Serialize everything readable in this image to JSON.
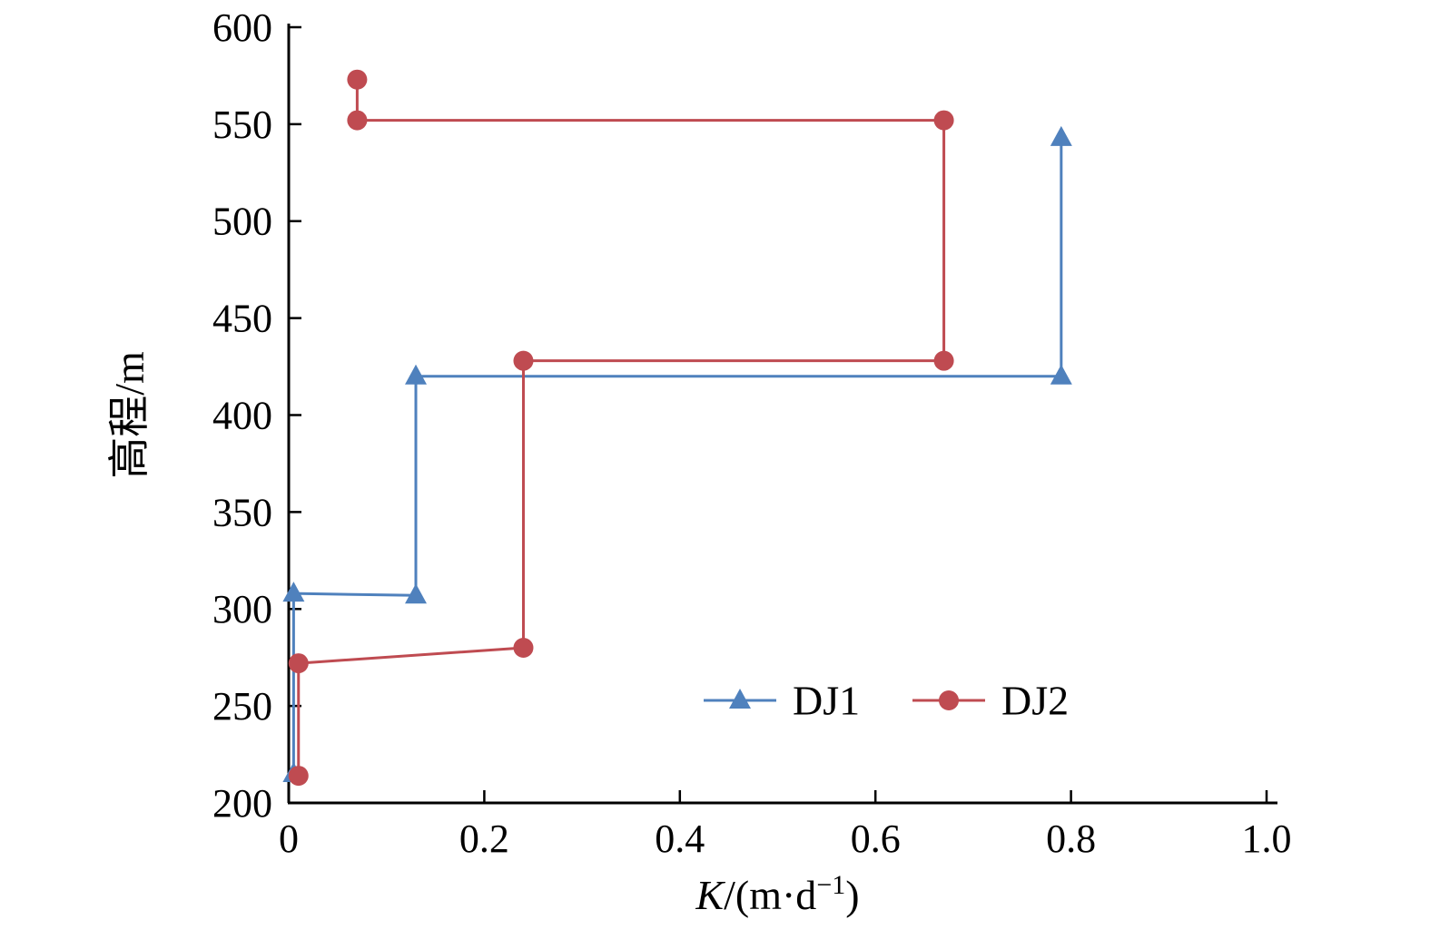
{
  "chart_data": {
    "type": "line",
    "title": "",
    "ylabel": "高程/m",
    "xlabel_parts": [
      {
        "text": "K",
        "italic": true
      },
      {
        "text": "/(m·d"
      },
      {
        "text": "−1",
        "sup": true
      },
      {
        "text": ")"
      }
    ],
    "xlim": [
      0,
      1.0
    ],
    "ylim": [
      200,
      600
    ],
    "grid": false,
    "xticks": [
      {
        "v": 0,
        "label": "0"
      },
      {
        "v": 0.2,
        "label": "0.2"
      },
      {
        "v": 0.4,
        "label": "0.4"
      },
      {
        "v": 0.6,
        "label": "0.6"
      },
      {
        "v": 0.8,
        "label": "0.8"
      },
      {
        "v": 1.0,
        "label": "1.0"
      }
    ],
    "yticks": [
      {
        "v": 200,
        "label": "200"
      },
      {
        "v": 250,
        "label": "250"
      },
      {
        "v": 300,
        "label": "300"
      },
      {
        "v": 350,
        "label": "350"
      },
      {
        "v": 400,
        "label": "400"
      },
      {
        "v": 450,
        "label": "450"
      },
      {
        "v": 500,
        "label": "500"
      },
      {
        "v": 550,
        "label": "550"
      },
      {
        "v": 600,
        "label": "600"
      }
    ],
    "legend": {
      "position": "inside-lower-middle",
      "items": [
        {
          "label": "DJ1",
          "series": 0
        },
        {
          "label": "DJ2",
          "series": 1
        }
      ]
    },
    "series": [
      {
        "name": "DJ1",
        "color": "#4f81bd",
        "marker": "triangle",
        "points": [
          {
            "x": 0.79,
            "y": 543
          },
          {
            "x": 0.79,
            "y": 420
          },
          {
            "x": 0.13,
            "y": 420
          },
          {
            "x": 0.13,
            "y": 307
          },
          {
            "x": 0.005,
            "y": 308
          },
          {
            "x": 0.005,
            "y": 215
          }
        ]
      },
      {
        "name": "DJ2",
        "color": "#bf4b51",
        "marker": "circle",
        "points": [
          {
            "x": 0.07,
            "y": 573
          },
          {
            "x": 0.07,
            "y": 552
          },
          {
            "x": 0.67,
            "y": 552
          },
          {
            "x": 0.67,
            "y": 428
          },
          {
            "x": 0.24,
            "y": 428
          },
          {
            "x": 0.24,
            "y": 280
          },
          {
            "x": 0.01,
            "y": 272
          },
          {
            "x": 0.01,
            "y": 214
          }
        ]
      }
    ]
  }
}
